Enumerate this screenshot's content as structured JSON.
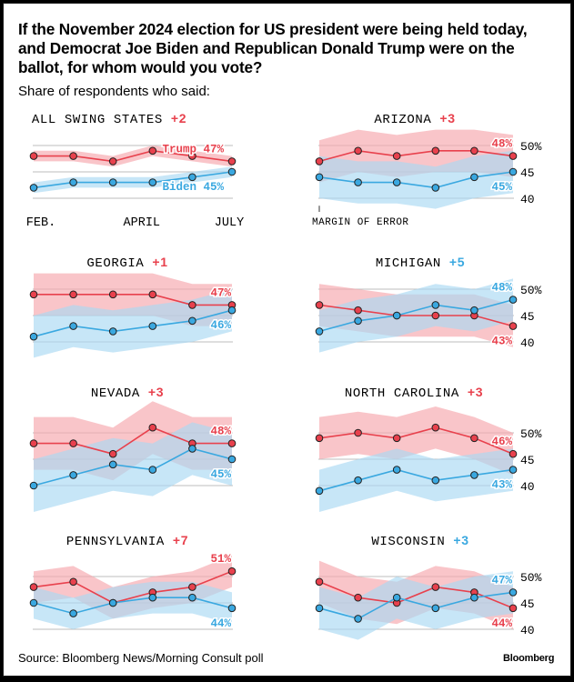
{
  "title_lines": [
    "If the November 2024 election for US president were being held today,",
    "and Democrat Joe Biden and Republican Donald Trump were on the",
    "ballot, for whom would you vote?"
  ],
  "subtitle": "Share of respondents who said:",
  "source": "Source: Bloomberg News/Morning Consult poll",
  "brand": "Bloomberg",
  "colors": {
    "trump": "#e8414d",
    "trump_band": "#f6a6ac",
    "biden": "#3aa8e0",
    "biden_band": "#a9d9f3",
    "lead": "#e8414d",
    "lead_biden": "#3aa8e0",
    "grid": "#bdbdbd",
    "text": "#000000"
  },
  "x_tick_labels": [
    "FEB.",
    "APRIL",
    "JULY"
  ],
  "y_tick_labels": [
    "50%",
    "45",
    "40"
  ],
  "margin_label": "MARGIN OF ERROR",
  "chart_data": [
    {
      "type": "line",
      "title": "ALL SWING STATES",
      "lead": "+2",
      "lead_party": "trump",
      "x": [
        1,
        2,
        3,
        4,
        5,
        6
      ],
      "ylim": [
        40,
        50
      ],
      "series": [
        {
          "name": "Trump",
          "values": [
            48,
            48,
            47,
            49,
            48,
            47
          ],
          "end_label": "Trump 47%"
        },
        {
          "name": "Biden",
          "values": [
            42,
            43,
            43,
            43,
            44,
            45
          ],
          "end_label": "Biden 45%"
        }
      ],
      "margin_of_error": 1
    },
    {
      "type": "line",
      "title": "ARIZONA",
      "lead": "+3",
      "lead_party": "trump",
      "x": [
        1,
        2,
        3,
        4,
        5,
        6
      ],
      "ylim": [
        40,
        50
      ],
      "series": [
        {
          "name": "Trump",
          "values": [
            47,
            49,
            48,
            49,
            49,
            48
          ],
          "end_label": "48%"
        },
        {
          "name": "Biden",
          "values": [
            44,
            43,
            43,
            42,
            44,
            45
          ],
          "end_label": "45%"
        }
      ],
      "margin_of_error": 4
    },
    {
      "type": "line",
      "title": "GEORGIA",
      "lead": "+1",
      "lead_party": "trump",
      "x": [
        1,
        2,
        3,
        4,
        5,
        6
      ],
      "ylim": [
        40,
        50
      ],
      "series": [
        {
          "name": "Trump",
          "values": [
            49,
            49,
            49,
            49,
            47,
            47
          ],
          "end_label": "47%"
        },
        {
          "name": "Biden",
          "values": [
            41,
            43,
            42,
            43,
            44,
            46
          ],
          "end_label": "46%"
        }
      ],
      "margin_of_error": 4
    },
    {
      "type": "line",
      "title": "MICHIGAN",
      "lead": "+5",
      "lead_party": "biden",
      "x": [
        1,
        2,
        3,
        4,
        5,
        6
      ],
      "ylim": [
        40,
        50
      ],
      "series": [
        {
          "name": "Trump",
          "values": [
            47,
            46,
            45,
            45,
            45,
            43
          ],
          "end_label": "43%"
        },
        {
          "name": "Biden",
          "values": [
            42,
            44,
            45,
            47,
            46,
            48
          ],
          "end_label": "48%"
        }
      ],
      "margin_of_error": 4
    },
    {
      "type": "line",
      "title": "NEVADA",
      "lead": "+3",
      "lead_party": "trump",
      "x": [
        1,
        2,
        3,
        4,
        5,
        6
      ],
      "ylim": [
        40,
        50
      ],
      "series": [
        {
          "name": "Trump",
          "values": [
            48,
            48,
            46,
            51,
            48,
            48
          ],
          "end_label": "48%"
        },
        {
          "name": "Biden",
          "values": [
            40,
            42,
            44,
            43,
            47,
            45
          ],
          "end_label": "45%"
        }
      ],
      "margin_of_error": 5
    },
    {
      "type": "line",
      "title": "NORTH CAROLINA",
      "lead": "+3",
      "lead_party": "trump",
      "x": [
        1,
        2,
        3,
        4,
        5,
        6
      ],
      "ylim": [
        40,
        50
      ],
      "series": [
        {
          "name": "Trump",
          "values": [
            49,
            50,
            49,
            51,
            49,
            46
          ],
          "end_label": "46%"
        },
        {
          "name": "Biden",
          "values": [
            39,
            41,
            43,
            41,
            42,
            43
          ],
          "end_label": "43%"
        }
      ],
      "margin_of_error": 4
    },
    {
      "type": "line",
      "title": "PENNSYLVANIA",
      "lead": "+7",
      "lead_party": "trump",
      "x": [
        1,
        2,
        3,
        4,
        5,
        6
      ],
      "ylim": [
        40,
        50
      ],
      "series": [
        {
          "name": "Trump",
          "values": [
            48,
            49,
            45,
            47,
            48,
            51
          ],
          "end_label": "51%"
        },
        {
          "name": "Biden",
          "values": [
            45,
            43,
            45,
            46,
            46,
            44
          ],
          "end_label": "44%"
        }
      ],
      "margin_of_error": 3
    },
    {
      "type": "line",
      "title": "WISCONSIN",
      "lead": "+3",
      "lead_party": "biden",
      "x": [
        1,
        2,
        3,
        4,
        5,
        6
      ],
      "ylim": [
        40,
        50
      ],
      "series": [
        {
          "name": "Trump",
          "values": [
            49,
            46,
            45,
            48,
            47,
            44
          ],
          "end_label": "44%"
        },
        {
          "name": "Biden",
          "values": [
            44,
            42,
            46,
            44,
            46,
            47
          ],
          "end_label": "47%"
        }
      ],
      "margin_of_error": 4
    }
  ]
}
